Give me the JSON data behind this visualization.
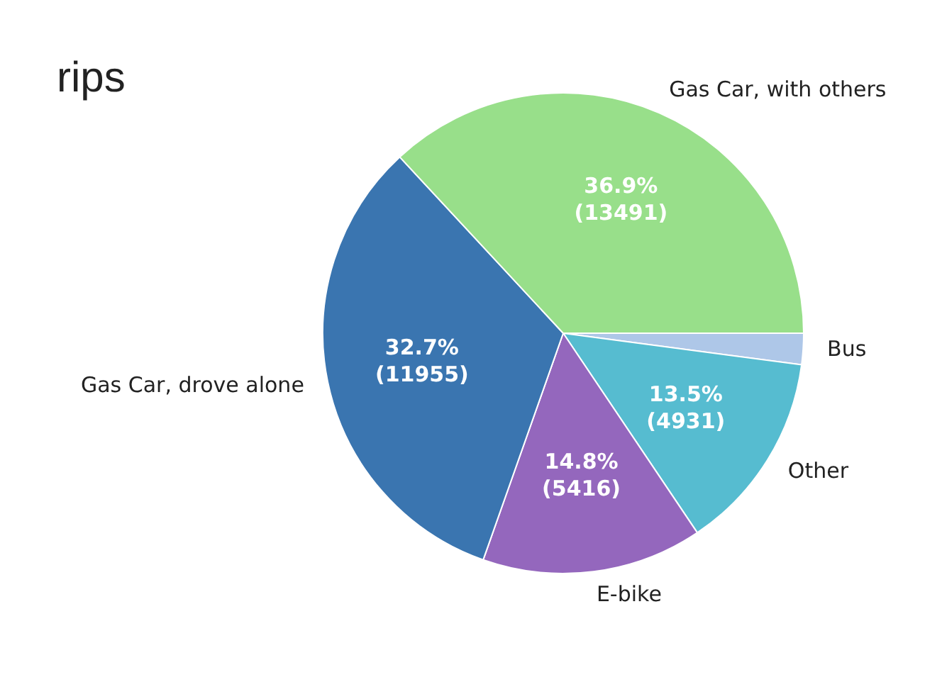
{
  "chart_data": {
    "type": "pie",
    "title": "rips",
    "categories": [
      "Bus",
      "Other",
      "E-bike",
      "Gas Car, drove alone",
      "Gas Car, with others"
    ],
    "values": [
      767,
      4931,
      5416,
      11955,
      13491
    ],
    "colors": [
      "#aec7e8",
      "#56bcd0",
      "#9467bd",
      "#3a75b0",
      "#98df8a"
    ],
    "value_labels": [
      null,
      "13.5%\n(4931)",
      "14.8%\n(5416)",
      "32.7%\n(11955)",
      "36.9%\n(13491)"
    ],
    "legend": false
  }
}
